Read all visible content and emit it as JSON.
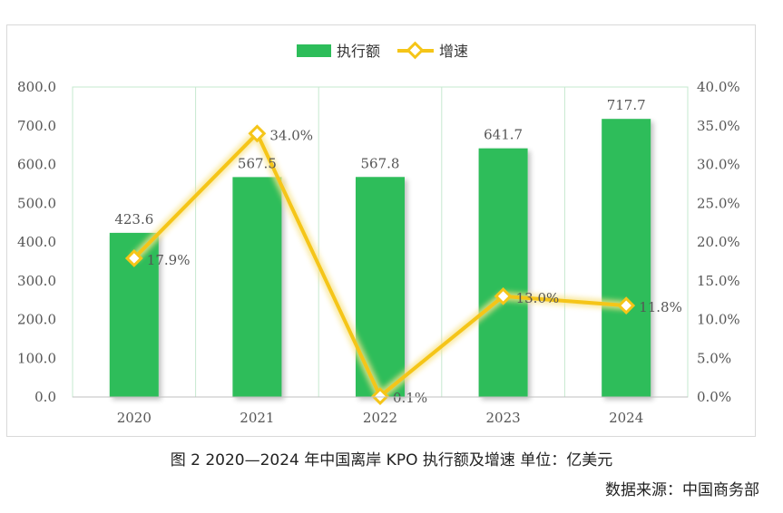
{
  "chart_data": {
    "type": "bar",
    "categories": [
      "2020",
      "2021",
      "2022",
      "2023",
      "2024"
    ],
    "series": [
      {
        "name": "执行额",
        "type": "bar",
        "axis": "left",
        "color": "#2dbd5a",
        "values": [
          423.6,
          567.5,
          567.8,
          641.7,
          717.7
        ],
        "labels": [
          "423.6",
          "567.5",
          "567.8",
          "641.7",
          "717.7"
        ]
      },
      {
        "name": "增速",
        "type": "line",
        "axis": "right",
        "color": "#f5c518",
        "values": [
          17.9,
          34.0,
          0.1,
          13.0,
          11.8
        ],
        "labels": [
          "17.9%",
          "34.0%",
          "0.1%",
          "13.0%",
          "11.8%"
        ]
      }
    ],
    "y_left": {
      "ylim": [
        0,
        800
      ],
      "ticks": [
        "0.0",
        "100.0",
        "200.0",
        "300.0",
        "400.0",
        "500.0",
        "600.0",
        "700.0",
        "800.0"
      ]
    },
    "y_right": {
      "ylim": [
        0,
        40
      ],
      "ticks": [
        "0.0%",
        "5.0%",
        "10.0%",
        "15.0%",
        "20.0%",
        "25.0%",
        "30.0%",
        "35.0%",
        "40.0%"
      ]
    },
    "legend_position": "top",
    "grid": "vertical"
  },
  "caption": "图 2 2020—2024 年中国离岸 KPO 执行额及增速 单位：亿美元",
  "source": "数据来源：中国商务部"
}
